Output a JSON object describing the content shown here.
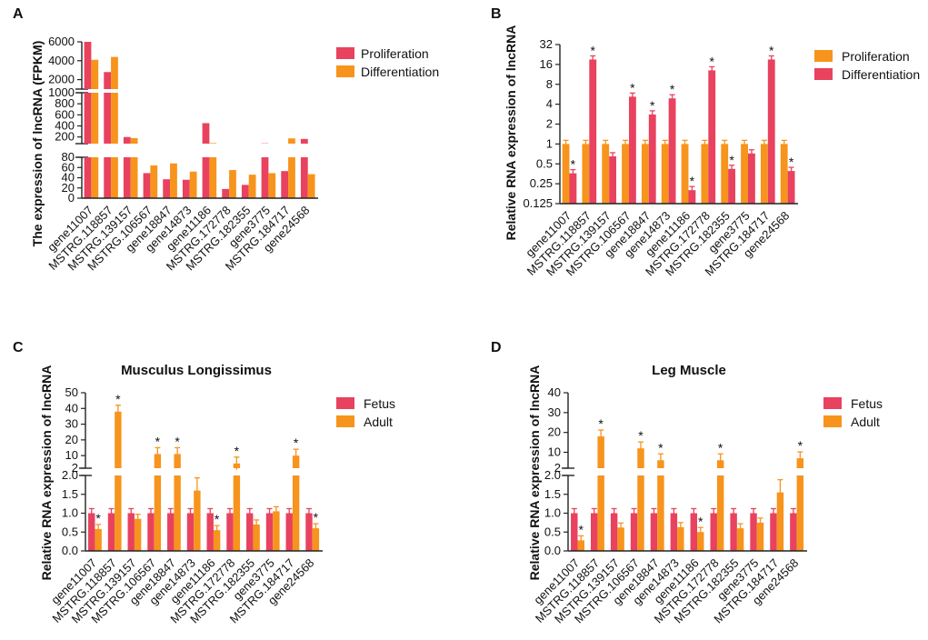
{
  "colors": {
    "red": "#e8425f",
    "orange": "#f7941d"
  },
  "categories": [
    "gene11007",
    "MSTRG.118857",
    "MSTRG.139157",
    "MSTRG.106567",
    "gene18847",
    "gene14873",
    "gene11186",
    "MSTRG.172778",
    "MSTRG.182355",
    "gene3775",
    "MSTRG.184717",
    "gene24568"
  ],
  "chart_data": [
    {
      "panel": "A",
      "type": "bar",
      "ylabel": "The expression of lncRNA (FPKM)",
      "ylim": [
        0,
        6000
      ],
      "broken_axis": [
        {
          "range": [
            0,
            80
          ],
          "ticks": [
            "0",
            "20",
            "40",
            "60",
            "80"
          ]
        },
        {
          "range": [
            80,
            1000
          ],
          "ticks": [
            "200",
            "400",
            "600",
            "800",
            "1000"
          ]
        },
        {
          "range": [
            1000,
            6000
          ],
          "ticks": [
            "2000",
            "4000",
            "6000"
          ]
        }
      ],
      "series": [
        {
          "name": "Proliferation",
          "color": "red",
          "values": [
            6000,
            2800,
            200,
            49,
            37,
            36,
            450,
            18,
            26,
            85,
            53,
            165
          ]
        },
        {
          "name": "Differentiation",
          "color": "orange",
          "values": [
            4100,
            4400,
            180,
            64,
            68,
            52,
            90,
            55,
            46,
            49,
            175,
            47
          ]
        }
      ],
      "legend": [
        "Proliferation",
        "Differentiation"
      ],
      "legend_position": "top-right"
    },
    {
      "panel": "B",
      "type": "bar",
      "scale": "log2",
      "ylabel": "Relative RNA expression of lncRNA",
      "ylim": [
        0.125,
        32
      ],
      "yticks": [
        "0.125",
        "0.25",
        "0.5",
        "1",
        "2",
        "4",
        "8",
        "16",
        "32"
      ],
      "series": [
        {
          "name": "Proliferation",
          "color": "orange",
          "values": [
            1,
            1,
            1,
            1,
            1,
            1,
            1,
            1,
            1,
            1,
            1,
            1
          ]
        },
        {
          "name": "Differentiation",
          "color": "red",
          "values": [
            0.36,
            19,
            0.65,
            5.2,
            2.8,
            4.9,
            0.2,
            13,
            0.42,
            0.72,
            19,
            0.39
          ],
          "significant": [
            true,
            true,
            false,
            true,
            true,
            true,
            true,
            true,
            true,
            false,
            true,
            true
          ]
        }
      ],
      "legend": [
        "Proliferation",
        "Differentiation"
      ],
      "legend_position": "top-right"
    },
    {
      "panel": "C",
      "type": "bar",
      "title": "Musculus Longissimus",
      "ylabel": "Relative RNA expression of lncRNA",
      "broken_axis": [
        {
          "range": [
            0,
            2
          ],
          "ticks": [
            "0.0",
            "0.5",
            "1.0",
            "1.5",
            "2.0"
          ]
        },
        {
          "range": [
            2,
            50
          ],
          "ticks": [
            "2",
            "10",
            "20",
            "30",
            "40",
            "50"
          ]
        }
      ],
      "series": [
        {
          "name": "Fetus",
          "color": "red",
          "values": [
            1,
            1,
            1,
            1,
            1,
            1,
            1,
            1,
            1,
            1,
            1,
            1
          ]
        },
        {
          "name": "Adult",
          "color": "orange",
          "values": [
            0.58,
            38,
            0.85,
            11,
            11,
            1.6,
            0.55,
            5,
            0.7,
            1.05,
            10,
            0.6
          ],
          "significant": [
            true,
            true,
            false,
            true,
            true,
            false,
            true,
            true,
            false,
            false,
            true,
            true
          ]
        }
      ],
      "legend": [
        "Fetus",
        "Adult"
      ],
      "legend_position": "top-right"
    },
    {
      "panel": "D",
      "type": "bar",
      "title": "Leg Muscle",
      "ylabel": "Relative RNA expression of lncRNA",
      "broken_axis": [
        {
          "range": [
            0,
            2
          ],
          "ticks": [
            "0.0",
            "0.5",
            "1.0",
            "1.5",
            "2.0"
          ]
        },
        {
          "range": [
            2,
            40
          ],
          "ticks": [
            "2",
            "10",
            "20",
            "30",
            "40"
          ]
        }
      ],
      "series": [
        {
          "name": "Fetus",
          "color": "red",
          "values": [
            1,
            1,
            1,
            1,
            1,
            1,
            1,
            1,
            1,
            1,
            1,
            1
          ]
        },
        {
          "name": "Adult",
          "color": "orange",
          "values": [
            0.28,
            18,
            0.62,
            12,
            6,
            0.63,
            0.5,
            6,
            0.6,
            0.75,
            1.55,
            7
          ],
          "significant": [
            true,
            true,
            false,
            true,
            true,
            false,
            true,
            true,
            false,
            false,
            false,
            true
          ]
        }
      ],
      "legend": [
        "Fetus",
        "Adult"
      ],
      "legend_position": "top-right"
    }
  ]
}
